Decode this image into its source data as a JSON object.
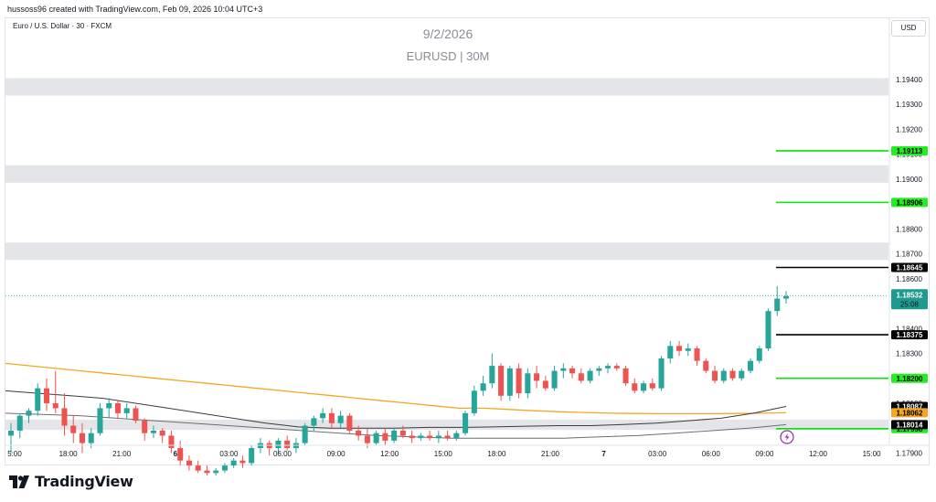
{
  "header": {
    "credit": "hussoss96 created with TradingView.com, Feb 09, 2026 10:04 UTC+3",
    "symbol_line": "Euro / U.S. Dollar · 30 · FXCM",
    "currency": "USD",
    "watermark_date": "9/2/2026",
    "watermark_title": "EURUSD | 30M"
  },
  "footer": {
    "brand": "TradingView"
  },
  "colors": {
    "up": "#26a69a",
    "down": "#ef5350",
    "zone": "#e3e5e9",
    "green_level": "#00e600",
    "black_level": "#000000",
    "ma_orange": "#f5a623",
    "ma_dark": "#3b3b3b",
    "ma_gray": "#6e6e6e",
    "last_price": "#1f9a8f",
    "level_tag_green": "#22ee22"
  },
  "chart_data": {
    "type": "candlestick",
    "symbol": "EURUSD",
    "timeframe": "30",
    "ylim": [
      1.1785,
      1.1948
    ],
    "y_ticks": [
      "1.17900",
      "1.18000",
      "1.18100",
      "1.18200",
      "1.18300",
      "1.18400",
      "1.18500",
      "1.18600",
      "1.18700",
      "1.18800",
      "1.18900",
      "1.19000",
      "1.19100",
      "1.19200",
      "1.19300",
      "1.19400"
    ],
    "x_ticks": [
      "5:00",
      "18:00",
      "21:00",
      "6",
      "03:00",
      "06:00",
      "09:00",
      "12:00",
      "15:00",
      "18:00",
      "21:00",
      "7",
      "03:00",
      "06:00",
      "09:00",
      "12:00",
      "15:00"
    ],
    "zones": [
      [
        1.17993,
        1.18034
      ],
      [
        1.18675,
        1.18745
      ],
      [
        1.18985,
        1.19055
      ],
      [
        1.19335,
        1.19405
      ]
    ],
    "levels": [
      {
        "price": 1.19113,
        "label": "1.19113",
        "kind": "green"
      },
      {
        "price": 1.18906,
        "label": "1.18906",
        "kind": "green"
      },
      {
        "price": 1.18645,
        "label": "1.18645",
        "kind": "black"
      },
      {
        "price": 1.18375,
        "label": "1.18375",
        "kind": "black"
      },
      {
        "price": 1.182,
        "label": "1.18200",
        "kind": "green"
      },
      {
        "price": 1.17998,
        "label": "1.17998",
        "kind": "green"
      }
    ],
    "ma_tags": [
      {
        "price": 1.18087,
        "label": "1.18087",
        "kind": "black"
      },
      {
        "price": 1.18062,
        "label": "1.18062",
        "kind": "orange"
      },
      {
        "price": 1.18014,
        "label": "1.18014",
        "kind": "black"
      }
    ],
    "last_price": {
      "price": 1.18532,
      "label": "1.18532",
      "countdown": "25:08"
    },
    "candles": [
      [
        1.1797,
        1.1802,
        1.179,
        1.1799
      ],
      [
        1.1799,
        1.1806,
        1.1796,
        1.1805
      ],
      [
        1.1805,
        1.1808,
        1.1802,
        1.1807
      ],
      [
        1.1807,
        1.1818,
        1.1805,
        1.1816
      ],
      [
        1.1816,
        1.182,
        1.1807,
        1.181
      ],
      [
        1.181,
        1.1823,
        1.1806,
        1.1808
      ],
      [
        1.1808,
        1.1814,
        1.1797,
        1.1801
      ],
      [
        1.1801,
        1.1805,
        1.1794,
        1.1798
      ],
      [
        1.1798,
        1.1802,
        1.179,
        1.1794
      ],
      [
        1.1794,
        1.18,
        1.1792,
        1.1798
      ],
      [
        1.1798,
        1.181,
        1.1797,
        1.1808
      ],
      [
        1.1808,
        1.1812,
        1.1804,
        1.181
      ],
      [
        1.181,
        1.1811,
        1.1804,
        1.1806
      ],
      [
        1.1806,
        1.181,
        1.1804,
        1.1808
      ],
      [
        1.1808,
        1.1809,
        1.1802,
        1.1803
      ],
      [
        1.1803,
        1.1804,
        1.1795,
        1.1798
      ],
      [
        1.1798,
        1.1801,
        1.1796,
        1.1799
      ],
      [
        1.1799,
        1.18,
        1.1794,
        1.1797
      ],
      [
        1.1797,
        1.1799,
        1.179,
        1.1792
      ],
      [
        1.1792,
        1.1795,
        1.1785,
        1.1787
      ],
      [
        1.1787,
        1.1789,
        1.1783,
        1.1785
      ],
      [
        1.1785,
        1.1787,
        1.1782,
        1.1783
      ],
      [
        1.1783,
        1.1785,
        1.1781,
        1.1782
      ],
      [
        1.1782,
        1.1784,
        1.1781,
        1.1783
      ],
      [
        1.1783,
        1.1786,
        1.1782,
        1.1785
      ],
      [
        1.1785,
        1.1788,
        1.1784,
        1.1787
      ],
      [
        1.1787,
        1.1789,
        1.1784,
        1.1786
      ],
      [
        1.1786,
        1.1793,
        1.1785,
        1.1792
      ],
      [
        1.1792,
        1.1796,
        1.179,
        1.1794
      ],
      [
        1.1794,
        1.1795,
        1.1789,
        1.1792
      ],
      [
        1.1792,
        1.1796,
        1.179,
        1.1795
      ],
      [
        1.1795,
        1.1797,
        1.1791,
        1.1792
      ],
      [
        1.1792,
        1.1796,
        1.179,
        1.1794
      ],
      [
        1.1794,
        1.1802,
        1.1793,
        1.1801
      ],
      [
        1.1801,
        1.1805,
        1.1799,
        1.1804
      ],
      [
        1.1804,
        1.1808,
        1.1802,
        1.1806
      ],
      [
        1.1806,
        1.1808,
        1.18,
        1.1802
      ],
      [
        1.1802,
        1.1807,
        1.18,
        1.1805
      ],
      [
        1.1805,
        1.1806,
        1.1798,
        1.1799
      ],
      [
        1.1799,
        1.1801,
        1.1795,
        1.1797
      ],
      [
        1.1797,
        1.18,
        1.1792,
        1.1794
      ],
      [
        1.1794,
        1.1799,
        1.1793,
        1.1798
      ],
      [
        1.1798,
        1.18,
        1.1793,
        1.1795
      ],
      [
        1.1795,
        1.18,
        1.1794,
        1.1799
      ],
      [
        1.1799,
        1.1801,
        1.1796,
        1.1797
      ],
      [
        1.1797,
        1.1799,
        1.1794,
        1.1796
      ],
      [
        1.1796,
        1.1798,
        1.1795,
        1.1797
      ],
      [
        1.1797,
        1.1799,
        1.1795,
        1.1796
      ],
      [
        1.1796,
        1.1799,
        1.1794,
        1.1797
      ],
      [
        1.1797,
        1.1799,
        1.1795,
        1.1796
      ],
      [
        1.1796,
        1.1799,
        1.1795,
        1.1798
      ],
      [
        1.1798,
        1.1807,
        1.1797,
        1.1806
      ],
      [
        1.1806,
        1.1817,
        1.1805,
        1.1815
      ],
      [
        1.1815,
        1.1821,
        1.1813,
        1.1818
      ],
      [
        1.1818,
        1.183,
        1.1816,
        1.1825
      ],
      [
        1.1825,
        1.1826,
        1.1811,
        1.1813
      ],
      [
        1.1813,
        1.1825,
        1.1811,
        1.1824
      ],
      [
        1.1824,
        1.1826,
        1.1812,
        1.1814
      ],
      [
        1.1814,
        1.1824,
        1.1812,
        1.1822
      ],
      [
        1.1822,
        1.1825,
        1.1816,
        1.1819
      ],
      [
        1.1819,
        1.1821,
        1.1815,
        1.1816
      ],
      [
        1.1816,
        1.1825,
        1.1815,
        1.1823
      ],
      [
        1.1823,
        1.1826,
        1.182,
        1.1824
      ],
      [
        1.1824,
        1.1825,
        1.182,
        1.1822
      ],
      [
        1.1822,
        1.1824,
        1.1818,
        1.1819
      ],
      [
        1.1819,
        1.1824,
        1.1818,
        1.1823
      ],
      [
        1.1823,
        1.1825,
        1.1821,
        1.1824
      ],
      [
        1.1824,
        1.1826,
        1.1822,
        1.1825
      ],
      [
        1.1825,
        1.1826,
        1.1823,
        1.1824
      ],
      [
        1.1824,
        1.1825,
        1.1817,
        1.1818
      ],
      [
        1.1818,
        1.182,
        1.1814,
        1.1815
      ],
      [
        1.1815,
        1.1819,
        1.1814,
        1.1818
      ],
      [
        1.1818,
        1.182,
        1.1815,
        1.1816
      ],
      [
        1.1816,
        1.1829,
        1.1815,
        1.1828
      ],
      [
        1.1828,
        1.1835,
        1.1826,
        1.1833
      ],
      [
        1.1833,
        1.1835,
        1.1829,
        1.1831
      ],
      [
        1.1831,
        1.1834,
        1.1829,
        1.1832
      ],
      [
        1.1832,
        1.1833,
        1.1825,
        1.1827
      ],
      [
        1.1827,
        1.1828,
        1.1822,
        1.1823
      ],
      [
        1.1823,
        1.1825,
        1.1818,
        1.1819
      ],
      [
        1.1819,
        1.1824,
        1.1818,
        1.1823
      ],
      [
        1.1823,
        1.1824,
        1.1819,
        1.182
      ],
      [
        1.182,
        1.1824,
        1.1819,
        1.1823
      ],
      [
        1.1823,
        1.1828,
        1.1822,
        1.1827
      ],
      [
        1.1827,
        1.1833,
        1.1826,
        1.1832
      ],
      [
        1.1832,
        1.1848,
        1.1831,
        1.1847
      ],
      [
        1.1847,
        1.1857,
        1.1845,
        1.1852
      ],
      [
        1.1852,
        1.1855,
        1.185,
        1.1853
      ]
    ],
    "ma_orange": [
      1.1826,
      1.1825,
      1.1824,
      1.1823,
      1.1822,
      1.1821,
      1.182,
      1.1819,
      1.1818,
      1.1817,
      1.1816,
      1.1815,
      1.1814,
      1.1813,
      1.1812,
      1.1811,
      1.181,
      1.1809,
      1.1808,
      1.1808,
      1.18075,
      1.1807,
      1.18066,
      1.18063,
      1.1806,
      1.18059,
      1.18058,
      1.18058,
      1.18058,
      1.18059,
      1.1806,
      1.18062
    ],
    "ma_dark": [
      1.1815,
      1.1814,
      1.1813,
      1.1812,
      1.181,
      1.1808,
      1.1806,
      1.1804,
      1.1802,
      1.18005,
      1.18,
      1.18,
      1.18,
      1.18003,
      1.18003,
      1.18005,
      1.18008,
      1.1801,
      1.1801,
      1.18015,
      1.1802,
      1.1803,
      1.1804,
      1.1806,
      1.18087
    ],
    "ma_gray": [
      1.1806,
      1.18055,
      1.1805,
      1.1804,
      1.1803,
      1.1802,
      1.1801,
      1.18,
      1.1799,
      1.1798,
      1.1797,
      1.17965,
      1.1796,
      1.1796,
      1.1796,
      1.1796,
      1.17965,
      1.1797,
      1.1798,
      1.1799,
      1.18,
      1.18014
    ]
  }
}
